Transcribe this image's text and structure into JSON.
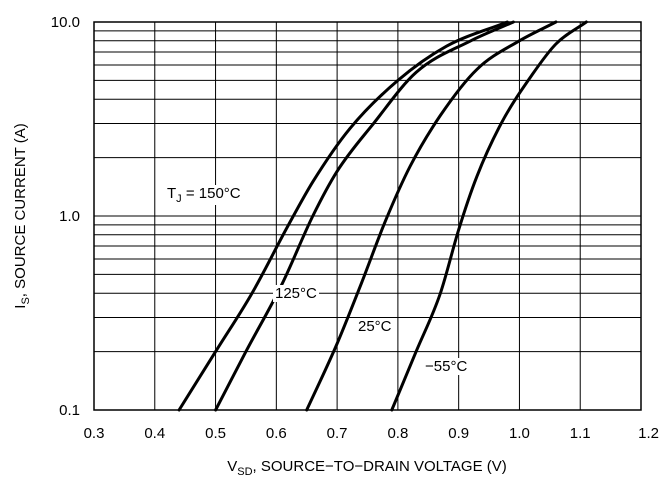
{
  "chart_data": {
    "type": "line",
    "x_scale": "linear",
    "y_scale": "log",
    "xlim": [
      0.3,
      1.2
    ],
    "ylim": [
      0.1,
      10.0
    ],
    "grid": true,
    "x_ticks": [
      {
        "value": 0.3,
        "label": "0.3"
      },
      {
        "value": 0.4,
        "label": "0.4"
      },
      {
        "value": 0.5,
        "label": "0.5"
      },
      {
        "value": 0.6,
        "label": "0.6"
      },
      {
        "value": 0.7,
        "label": "0.7"
      },
      {
        "value": 0.8,
        "label": "0.8"
      },
      {
        "value": 0.9,
        "label": "0.9"
      },
      {
        "value": 1.0,
        "label": "1.0"
      },
      {
        "value": 1.1,
        "label": "1.1"
      },
      {
        "value": 1.2,
        "label": "1.2"
      }
    ],
    "y_ticks": [
      {
        "value": 0.1,
        "label": "0.1"
      },
      {
        "value": 1.0,
        "label": "1.0"
      },
      {
        "value": 10.0,
        "label": "10.0"
      }
    ],
    "xlabel": {
      "main": "V",
      "sub": "SD",
      "rest": ", SOURCE−TO−DRAIN VOLTAGE (V)"
    },
    "ylabel": {
      "main": "I",
      "sub": "S",
      "rest": ", SOURCE CURRENT (A)"
    },
    "series": [
      {
        "name": "T_J = 150°C",
        "x": [
          0.44,
          0.5,
          0.56,
          0.62,
          0.66,
          0.72,
          0.8,
          0.88,
          0.98
        ],
        "y": [
          0.1,
          0.2,
          0.4,
          0.9,
          1.5,
          2.8,
          5.0,
          7.5,
          10.0
        ]
      },
      {
        "name": "125°C",
        "x": [
          0.5,
          0.55,
          0.61,
          0.66,
          0.7,
          0.76,
          0.83,
          0.92,
          0.99
        ],
        "y": [
          0.1,
          0.2,
          0.45,
          1.0,
          1.7,
          3.0,
          5.5,
          8.0,
          10.0
        ]
      },
      {
        "name": "25°C",
        "x": [
          0.65,
          0.7,
          0.74,
          0.78,
          0.82,
          0.87,
          0.93,
          1.0,
          1.06
        ],
        "y": [
          0.1,
          0.22,
          0.45,
          0.95,
          1.8,
          3.3,
          5.7,
          8.0,
          10.0
        ]
      },
      {
        "name": "−55°C",
        "x": [
          0.79,
          0.83,
          0.87,
          0.9,
          0.93,
          0.97,
          1.02,
          1.06,
          1.11
        ],
        "y": [
          0.1,
          0.2,
          0.4,
          0.85,
          1.6,
          3.0,
          5.3,
          7.7,
          10.0
        ]
      }
    ],
    "annotations": [
      {
        "parts": [
          {
            "t": "T"
          },
          {
            "t": "J",
            "sub": true
          },
          {
            "t": " = 150°C"
          }
        ],
        "series": 0
      },
      {
        "parts": [
          {
            "t": "125°C"
          }
        ],
        "series": 1
      },
      {
        "parts": [
          {
            "t": "25°C"
          }
        ],
        "series": 2
      },
      {
        "parts": [
          {
            "t": "−55°C"
          }
        ],
        "series": 3
      }
    ]
  }
}
